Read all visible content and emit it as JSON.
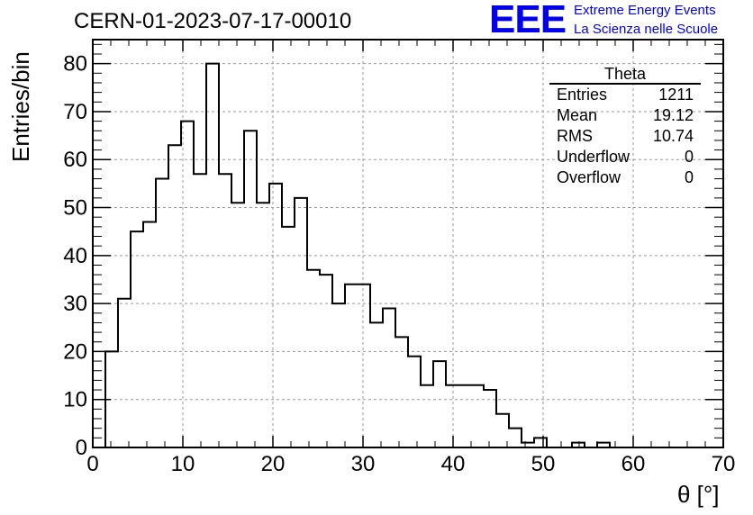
{
  "header": {
    "title": "CERN-01-2023-07-17-00010",
    "logo_text": "EEE",
    "logo_line1": "Extreme Energy Events",
    "logo_line2": "La Scienza nelle Scuole",
    "logo_color": "#0000ee"
  },
  "stats": {
    "title": "Theta",
    "rows": [
      {
        "label": "Entries",
        "value": "1211"
      },
      {
        "label": "Mean",
        "value": "19.12"
      },
      {
        "label": "RMS",
        "value": "10.74"
      },
      {
        "label": "Underflow",
        "value": "0"
      },
      {
        "label": "Overflow",
        "value": "0"
      }
    ]
  },
  "chart_data": {
    "type": "bar",
    "style": "step-histogram",
    "xlabel": "θ [°]",
    "ylabel": "Entries/bin",
    "xlim": [
      0,
      70
    ],
    "ylim": [
      0,
      85
    ],
    "grid": true,
    "bin_width": 1.4,
    "x_ticks": [
      0,
      10,
      20,
      30,
      40,
      50,
      60,
      70
    ],
    "y_ticks": [
      0,
      10,
      20,
      30,
      40,
      50,
      60,
      70,
      80
    ],
    "bin_edges": [
      1.4,
      2.8,
      4.2,
      5.6,
      7.0,
      8.4,
      9.8,
      11.2,
      12.6,
      14.0,
      15.4,
      16.8,
      18.2,
      19.6,
      21.0,
      22.4,
      23.8,
      25.2,
      26.6,
      28.0,
      29.4,
      30.8,
      32.2,
      33.6,
      35.0,
      36.4,
      37.8,
      39.2,
      40.6,
      42.0,
      43.4,
      44.8,
      46.2,
      47.6,
      49.0,
      50.4,
      51.8,
      53.2,
      54.6,
      56.0,
      57.4,
      58.8
    ],
    "values": [
      20,
      31,
      45,
      47,
      56,
      63,
      68,
      57,
      80,
      57,
      51,
      66,
      51,
      55,
      46,
      52,
      37,
      36,
      30,
      34,
      34,
      26,
      29,
      23,
      19,
      13,
      18,
      13,
      13,
      13,
      12,
      7,
      4,
      1,
      2,
      0,
      0,
      1,
      0,
      1,
      0
    ]
  }
}
